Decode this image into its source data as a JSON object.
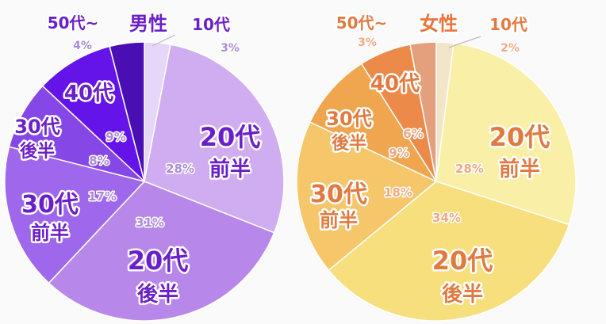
{
  "chart_data": [
    {
      "type": "pie",
      "title": "男性",
      "colors": {
        "title": "#6b1fc9",
        "label": "#6b1fc9",
        "pct": "#a98ad9"
      },
      "series": [
        {
          "values": [
            3,
            28,
            31,
            17,
            8,
            9,
            4
          ]
        }
      ],
      "slices": [
        {
          "label": "10代",
          "value": 3,
          "pct_text": "3%",
          "color": "#e6d6f8"
        },
        {
          "label": "20代 前半",
          "value": 28,
          "pct_text": "28%",
          "color": "#cfadf0"
        },
        {
          "label": "20代 後半",
          "value": 31,
          "pct_text": "31%",
          "color": "#b887ea"
        },
        {
          "label": "30代 前半",
          "value": 17,
          "pct_text": "17%",
          "color": "#9f67ec"
        },
        {
          "label": "30代 後半",
          "value": 8,
          "pct_text": "8%",
          "color": "#8547e6"
        },
        {
          "label": "40代",
          "value": 9,
          "pct_text": "9%",
          "color": "#6413e8"
        },
        {
          "label": "50代~",
          "value": 4,
          "pct_text": "4%",
          "color": "#4a0fb3"
        }
      ]
    },
    {
      "type": "pie",
      "title": "女性",
      "colors": {
        "title": "#e8743b",
        "label": "#e07a40",
        "pct": "#f0a882"
      },
      "series": [
        {
          "values": [
            2,
            28,
            34,
            18,
            9,
            6,
            3
          ]
        }
      ],
      "slices": [
        {
          "label": "10代",
          "value": 2,
          "pct_text": "2%",
          "color": "#f3e6c8"
        },
        {
          "label": "20代 前半",
          "value": 28,
          "pct_text": "28%",
          "color": "#faefa6"
        },
        {
          "label": "20代 後半",
          "value": 34,
          "pct_text": "34%",
          "color": "#f7df7e"
        },
        {
          "label": "30代 前半",
          "value": 18,
          "pct_text": "18%",
          "color": "#f6c76a"
        },
        {
          "label": "30代 後半",
          "value": 9,
          "pct_text": "9%",
          "color": "#f0a64e"
        },
        {
          "label": "40代",
          "value": 6,
          "pct_text": "6%",
          "color": "#ec8a4a"
        },
        {
          "label": "50代~",
          "value": 3,
          "pct_text": "3%",
          "color": "#e4a07c"
        }
      ]
    }
  ]
}
